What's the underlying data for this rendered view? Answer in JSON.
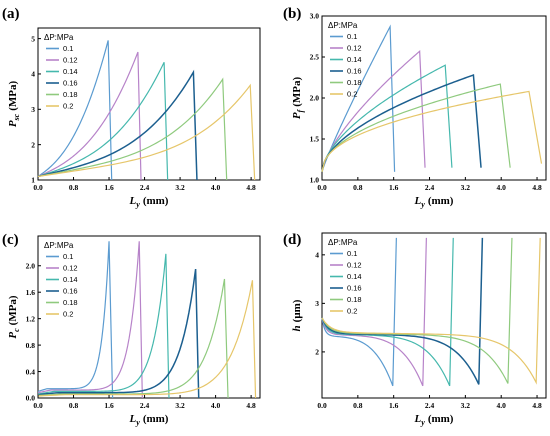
{
  "colors": {
    "0.1": "#5b9bd0",
    "0.12": "#b783c9",
    "0.14": "#45b8ad",
    "0.16": "#1c5f8f",
    "0.18": "#8fca7e",
    "0.2": "#e6c66a"
  },
  "chart_data": [
    {
      "type": "line",
      "panel_label": "(a)",
      "ylabel": "P",
      "ylabel_sub": "sc",
      "ylabel_unit": "(MPa)",
      "xlabel": "L",
      "xlabel_sub": "y",
      "xlabel_unit": "(mm)",
      "xlim": [
        0,
        5.0
      ],
      "ylim": [
        1,
        5.3
      ],
      "xticks": [
        "0.0",
        "0.8",
        "1.6",
        "2.4",
        "3.2",
        "4.0",
        "4.8"
      ],
      "xtick_values": [
        0,
        0.8,
        1.6,
        2.4,
        3.2,
        4.0,
        4.8
      ],
      "yticks": [
        "1",
        "2",
        "3",
        "4",
        "5"
      ],
      "ytick_values": [
        1,
        2,
        3,
        4,
        5
      ],
      "legend_title": "ΔP:MPa",
      "legend_position": "top-left",
      "series": [
        {
          "name": "0.1",
          "curve": "rise",
          "start": 1.1,
          "peak_x": 1.58,
          "peak_y": 4.95,
          "end_x": 1.66,
          "end_y": 1.0,
          "shape": 1.5
        },
        {
          "name": "0.12",
          "curve": "rise",
          "start": 1.1,
          "peak_x": 2.25,
          "peak_y": 4.62,
          "end_x": 2.32,
          "end_y": 1.0,
          "shape": 1.7
        },
        {
          "name": "0.14",
          "curve": "rise",
          "start": 1.1,
          "peak_x": 2.84,
          "peak_y": 4.33,
          "end_x": 2.92,
          "end_y": 1.0,
          "shape": 2.0
        },
        {
          "name": "0.16",
          "curve": "rise",
          "start": 1.1,
          "peak_x": 3.5,
          "peak_y": 4.05,
          "end_x": 3.58,
          "end_y": 1.0,
          "shape": 2.4
        },
        {
          "name": "0.18",
          "curve": "rise",
          "start": 1.1,
          "peak_x": 4.16,
          "peak_y": 3.85,
          "end_x": 4.25,
          "end_y": 1.0,
          "shape": 2.8
        },
        {
          "name": "0.2",
          "curve": "rise",
          "start": 1.1,
          "peak_x": 4.78,
          "peak_y": 3.68,
          "end_x": 4.88,
          "end_y": 1.0,
          "shape": 3.2
        }
      ]
    },
    {
      "type": "line",
      "panel_label": "(b)",
      "ylabel": "P",
      "ylabel_sub": "f",
      "ylabel_unit": "(MPa)",
      "xlabel": "L",
      "xlabel_sub": "y",
      "xlabel_unit": "(mm)",
      "xlim": [
        0,
        5.0
      ],
      "ylim": [
        1.0,
        3.0
      ],
      "xticks": [
        "0.0",
        "0.8",
        "1.6",
        "2.4",
        "3.2",
        "4.0",
        "4.8"
      ],
      "xtick_values": [
        0,
        0.8,
        1.6,
        2.4,
        3.2,
        4.0,
        4.8
      ],
      "yticks": [
        "1.0",
        "1.5",
        "2.0",
        "2.5",
        "3.0"
      ],
      "ytick_values": [
        1.0,
        1.5,
        2.0,
        2.5,
        3.0
      ],
      "legend_title": "ΔP:MPa",
      "legend_position": "top-left",
      "series": [
        {
          "name": "0.1",
          "curve": "concave",
          "start": 1.1,
          "peak_x": 1.52,
          "peak_y": 2.87,
          "end_x": 1.62,
          "end_y": 1.1,
          "shape": 0.9
        },
        {
          "name": "0.12",
          "curve": "concave",
          "start": 1.1,
          "peak_x": 2.18,
          "peak_y": 2.57,
          "end_x": 2.3,
          "end_y": 1.15,
          "shape": 0.7
        },
        {
          "name": "0.14",
          "curve": "concave",
          "start": 1.1,
          "peak_x": 2.75,
          "peak_y": 2.4,
          "end_x": 2.9,
          "end_y": 1.15,
          "shape": 0.6
        },
        {
          "name": "0.16",
          "curve": "concave",
          "start": 1.1,
          "peak_x": 3.38,
          "peak_y": 2.28,
          "end_x": 3.55,
          "end_y": 1.15,
          "shape": 0.55
        },
        {
          "name": "0.18",
          "curve": "concave",
          "start": 1.1,
          "peak_x": 3.98,
          "peak_y": 2.17,
          "end_x": 4.2,
          "end_y": 1.15,
          "shape": 0.5
        },
        {
          "name": "0.2",
          "curve": "concave",
          "start": 1.1,
          "peak_x": 4.62,
          "peak_y": 2.08,
          "end_x": 4.9,
          "end_y": 1.2,
          "shape": 0.45
        }
      ]
    },
    {
      "type": "line",
      "panel_label": "(c)",
      "ylabel": "P",
      "ylabel_sub": "c",
      "ylabel_unit": "(MPa)",
      "xlabel": "L",
      "xlabel_sub": "y",
      "xlabel_unit": "(mm)",
      "xlim": [
        0,
        5.0
      ],
      "ylim": [
        0,
        2.45
      ],
      "xticks": [
        "0.0",
        "0.8",
        "1.6",
        "2.4",
        "3.2",
        "4.0",
        "4.8"
      ],
      "xtick_values": [
        0,
        0.8,
        1.6,
        2.4,
        3.2,
        4.0,
        4.8
      ],
      "yticks": [
        "0.0",
        "0.4",
        "0.8",
        "1.2",
        "1.6",
        "2.0"
      ],
      "ytick_values": [
        0,
        0.4,
        0.8,
        1.2,
        1.6,
        2.0
      ],
      "legend_title": "ΔP:MPa",
      "legend_position": "top-left",
      "series": [
        {
          "name": "0.1",
          "curve": "spike",
          "start": 0.1,
          "base_y": 0.14,
          "peak_x": 1.6,
          "peak_y": 2.37,
          "end_x": 1.68,
          "end_y": 0.0,
          "shape": 10
        },
        {
          "name": "0.12",
          "curve": "spike",
          "start": 0.08,
          "base_y": 0.12,
          "peak_x": 2.28,
          "peak_y": 2.37,
          "end_x": 2.35,
          "end_y": 0.0,
          "shape": 10
        },
        {
          "name": "0.14",
          "curve": "spike",
          "start": 0.06,
          "base_y": 0.1,
          "peak_x": 2.88,
          "peak_y": 2.18,
          "end_x": 2.95,
          "end_y": 0.0,
          "shape": 10
        },
        {
          "name": "0.16",
          "curve": "spike",
          "start": 0.05,
          "base_y": 0.08,
          "peak_x": 3.55,
          "peak_y": 1.95,
          "end_x": 3.62,
          "end_y": 0.0,
          "shape": 10
        },
        {
          "name": "0.18",
          "curve": "spike",
          "start": 0.04,
          "base_y": 0.06,
          "peak_x": 4.2,
          "peak_y": 1.8,
          "end_x": 4.28,
          "end_y": 0.0,
          "shape": 10
        },
        {
          "name": "0.2",
          "curve": "spike",
          "start": 0.03,
          "base_y": 0.05,
          "peak_x": 4.83,
          "peak_y": 1.78,
          "end_x": 4.9,
          "end_y": 0.0,
          "shape": 10
        }
      ]
    },
    {
      "type": "line",
      "panel_label": "(d)",
      "ylabel": "h",
      "ylabel_sub": "",
      "ylabel_unit": "(μm)",
      "xlabel": "L",
      "xlabel_sub": "y",
      "xlabel_unit": "(mm)",
      "xlim": [
        0,
        5.0
      ],
      "ylim": [
        1.05,
        4.45
      ],
      "xticks": [
        "0.0",
        "0.8",
        "1.6",
        "2.4",
        "3.2",
        "4.0",
        "4.8"
      ],
      "xtick_values": [
        0,
        0.8,
        1.6,
        2.4,
        3.2,
        4.0,
        4.8
      ],
      "yticks": [
        "2",
        "3",
        "4"
      ],
      "ytick_values": [
        2,
        3,
        4
      ],
      "legend_title": "ΔP:MPa",
      "legend_position": "top-left",
      "series": [
        {
          "name": "0.1",
          "curve": "dip",
          "start": 2.7,
          "plateau": 2.33,
          "min_x": 1.58,
          "min_y": 1.3,
          "end_x": 1.66,
          "end_y": 4.35,
          "shape": 4
        },
        {
          "name": "0.12",
          "curve": "dip",
          "start": 2.7,
          "plateau": 2.36,
          "min_x": 2.25,
          "min_y": 1.3,
          "end_x": 2.33,
          "end_y": 4.35,
          "shape": 5
        },
        {
          "name": "0.14",
          "curve": "dip",
          "start": 2.7,
          "plateau": 2.37,
          "min_x": 2.85,
          "min_y": 1.3,
          "end_x": 2.93,
          "end_y": 4.35,
          "shape": 6
        },
        {
          "name": "0.16",
          "curve": "dip",
          "start": 2.7,
          "plateau": 2.38,
          "min_x": 3.5,
          "min_y": 1.33,
          "end_x": 3.58,
          "end_y": 4.35,
          "shape": 7
        },
        {
          "name": "0.18",
          "curve": "dip",
          "start": 2.7,
          "plateau": 2.39,
          "min_x": 4.15,
          "min_y": 1.35,
          "end_x": 4.24,
          "end_y": 4.35,
          "shape": 8
        },
        {
          "name": "0.2",
          "curve": "dip",
          "start": 2.7,
          "plateau": 2.4,
          "min_x": 4.78,
          "min_y": 1.37,
          "end_x": 4.87,
          "end_y": 4.35,
          "shape": 9
        }
      ]
    }
  ]
}
